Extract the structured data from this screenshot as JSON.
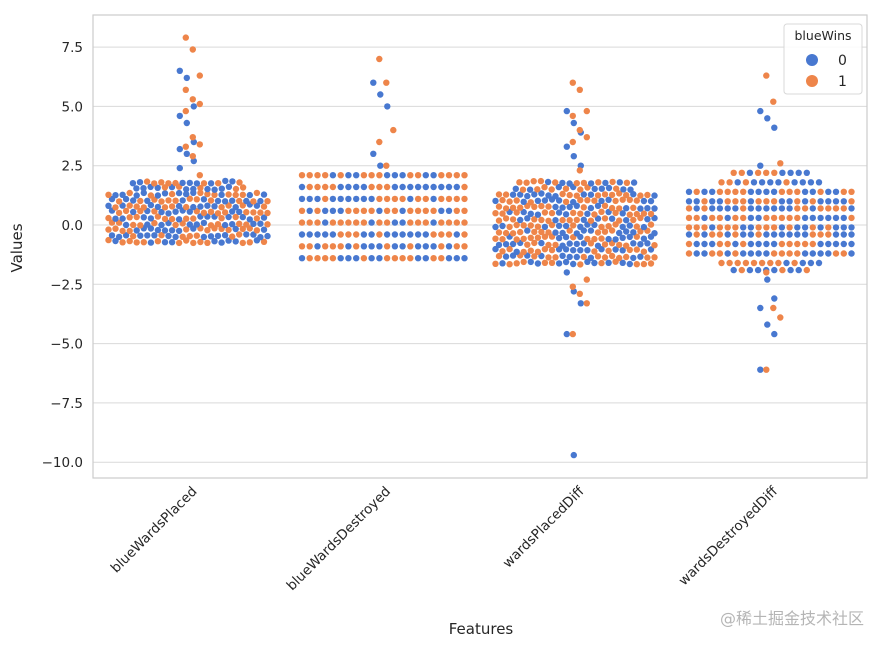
{
  "chart_data": {
    "type": "swarm",
    "title": "",
    "xlabel": "Features",
    "ylabel": "Values",
    "ylim": [
      -10.6,
      8.9
    ],
    "yticks": [
      7.5,
      5.0,
      2.5,
      0.0,
      -2.5,
      -5.0,
      -7.5,
      -10.0
    ],
    "ytick_labels": [
      "7.5",
      "5.0",
      "2.5",
      "0.0",
      "−2.5",
      "−5.0",
      "−7.5",
      "−10.0"
    ],
    "grid": true,
    "categories": [
      "blueWardsPlaced",
      "blueWardsDestroyed",
      "wardsPlacedDiff",
      "wardsDestroyedDiff"
    ],
    "legend": {
      "title": "blueWins",
      "placement": "top-right",
      "entries": [
        {
          "label": "0",
          "color": "#4878d0"
        },
        {
          "label": "1",
          "color": "#ee854a"
        }
      ]
    },
    "series": [
      {
        "name": "blueWins=0",
        "color": "#4878d0",
        "outliers": {
          "blueWardsPlaced": [
            6.5,
            6.2,
            5.0,
            4.6,
            4.3,
            3.5,
            3.2,
            3.0,
            2.7,
            2.4
          ],
          "blueWardsDestroyed": [
            6.0,
            5.5,
            5.0,
            3.0,
            2.5
          ],
          "wardsPlacedDiff": [
            4.8,
            4.3,
            3.9,
            3.3,
            2.9,
            2.5,
            -2.0,
            -2.8,
            -3.3,
            -4.6,
            -9.7
          ],
          "wardsDestroyedDiff": [
            4.8,
            4.5,
            4.1,
            2.5,
            -2.3,
            -3.1,
            -3.5,
            -4.2,
            -4.6,
            -6.1
          ]
        },
        "summary": {
          "blueWardsPlaced": {
            "core_min": -0.7,
            "core_max": 1.8
          },
          "blueWardsDestroyed": {
            "levels": [
              2.1,
              1.6,
              1.1,
              0.6,
              0.1,
              -0.4,
              -0.9,
              -1.4
            ]
          },
          "wardsPlacedDiff": {
            "core_min": -1.6,
            "core_max": 1.8
          },
          "wardsDestroyedDiff": {
            "levels": [
              2.2,
              1.8,
              1.4,
              1.0,
              0.7,
              0.3,
              -0.1,
              -0.4,
              -0.8,
              -1.2,
              -1.6,
              -1.9
            ]
          }
        }
      },
      {
        "name": "blueWins=1",
        "color": "#ee854a",
        "outliers": {
          "blueWardsPlaced": [
            7.9,
            7.4,
            6.3,
            5.7,
            5.3,
            5.1,
            4.8,
            3.7,
            3.4,
            3.3,
            2.9,
            2.1
          ],
          "blueWardsDestroyed": [
            7.0,
            6.0,
            4.0,
            3.5,
            2.5
          ],
          "wardsPlacedDiff": [
            6.0,
            5.7,
            4.8,
            4.6,
            4.0,
            3.7,
            3.5,
            2.3,
            -2.3,
            -2.6,
            -2.9,
            -3.3,
            -4.6
          ],
          "wardsDestroyedDiff": [
            6.3,
            5.2,
            2.6,
            -2.0,
            -3.5,
            -3.9,
            -6.1
          ]
        },
        "summary": {
          "blueWardsPlaced": {
            "core_min": -0.8,
            "core_max": 1.9
          },
          "blueWardsDestroyed": {
            "levels": [
              2.1,
              1.6,
              1.1,
              0.6,
              0.1,
              -0.4,
              -0.9,
              -1.4
            ]
          },
          "wardsPlacedDiff": {
            "core_min": -1.6,
            "core_max": 1.8
          },
          "wardsDestroyedDiff": {
            "levels": [
              2.2,
              1.8,
              1.4,
              1.0,
              0.7,
              0.3,
              -0.1,
              -0.4,
              -0.8,
              -1.2,
              -1.6,
              -1.9
            ]
          }
        }
      }
    ]
  },
  "watermark": "@稀土掘金技术社区"
}
